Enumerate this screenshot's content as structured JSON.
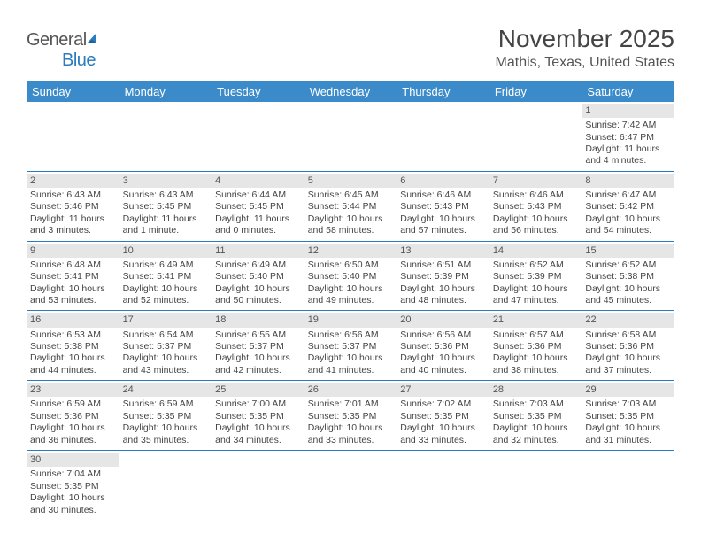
{
  "logo": {
    "general": "General",
    "blue": "Blue"
  },
  "header": {
    "month_title": "November 2025",
    "location": "Mathis, Texas, United States"
  },
  "colors": {
    "header_bg": "#3b8bca",
    "header_text": "#ffffff",
    "daynum_bg": "#e6e6e6",
    "cell_border": "#2b7bbf",
    "body_text": "#444444"
  },
  "weekdays": [
    "Sunday",
    "Monday",
    "Tuesday",
    "Wednesday",
    "Thursday",
    "Friday",
    "Saturday"
  ],
  "weeks": [
    [
      null,
      null,
      null,
      null,
      null,
      null,
      {
        "n": "1",
        "sr": "Sunrise: 7:42 AM",
        "ss": "Sunset: 6:47 PM",
        "dl1": "Daylight: 11 hours",
        "dl2": "and 4 minutes."
      }
    ],
    [
      {
        "n": "2",
        "sr": "Sunrise: 6:43 AM",
        "ss": "Sunset: 5:46 PM",
        "dl1": "Daylight: 11 hours",
        "dl2": "and 3 minutes."
      },
      {
        "n": "3",
        "sr": "Sunrise: 6:43 AM",
        "ss": "Sunset: 5:45 PM",
        "dl1": "Daylight: 11 hours",
        "dl2": "and 1 minute."
      },
      {
        "n": "4",
        "sr": "Sunrise: 6:44 AM",
        "ss": "Sunset: 5:45 PM",
        "dl1": "Daylight: 11 hours",
        "dl2": "and 0 minutes."
      },
      {
        "n": "5",
        "sr": "Sunrise: 6:45 AM",
        "ss": "Sunset: 5:44 PM",
        "dl1": "Daylight: 10 hours",
        "dl2": "and 58 minutes."
      },
      {
        "n": "6",
        "sr": "Sunrise: 6:46 AM",
        "ss": "Sunset: 5:43 PM",
        "dl1": "Daylight: 10 hours",
        "dl2": "and 57 minutes."
      },
      {
        "n": "7",
        "sr": "Sunrise: 6:46 AM",
        "ss": "Sunset: 5:43 PM",
        "dl1": "Daylight: 10 hours",
        "dl2": "and 56 minutes."
      },
      {
        "n": "8",
        "sr": "Sunrise: 6:47 AM",
        "ss": "Sunset: 5:42 PM",
        "dl1": "Daylight: 10 hours",
        "dl2": "and 54 minutes."
      }
    ],
    [
      {
        "n": "9",
        "sr": "Sunrise: 6:48 AM",
        "ss": "Sunset: 5:41 PM",
        "dl1": "Daylight: 10 hours",
        "dl2": "and 53 minutes."
      },
      {
        "n": "10",
        "sr": "Sunrise: 6:49 AM",
        "ss": "Sunset: 5:41 PM",
        "dl1": "Daylight: 10 hours",
        "dl2": "and 52 minutes."
      },
      {
        "n": "11",
        "sr": "Sunrise: 6:49 AM",
        "ss": "Sunset: 5:40 PM",
        "dl1": "Daylight: 10 hours",
        "dl2": "and 50 minutes."
      },
      {
        "n": "12",
        "sr": "Sunrise: 6:50 AM",
        "ss": "Sunset: 5:40 PM",
        "dl1": "Daylight: 10 hours",
        "dl2": "and 49 minutes."
      },
      {
        "n": "13",
        "sr": "Sunrise: 6:51 AM",
        "ss": "Sunset: 5:39 PM",
        "dl1": "Daylight: 10 hours",
        "dl2": "and 48 minutes."
      },
      {
        "n": "14",
        "sr": "Sunrise: 6:52 AM",
        "ss": "Sunset: 5:39 PM",
        "dl1": "Daylight: 10 hours",
        "dl2": "and 47 minutes."
      },
      {
        "n": "15",
        "sr": "Sunrise: 6:52 AM",
        "ss": "Sunset: 5:38 PM",
        "dl1": "Daylight: 10 hours",
        "dl2": "and 45 minutes."
      }
    ],
    [
      {
        "n": "16",
        "sr": "Sunrise: 6:53 AM",
        "ss": "Sunset: 5:38 PM",
        "dl1": "Daylight: 10 hours",
        "dl2": "and 44 minutes."
      },
      {
        "n": "17",
        "sr": "Sunrise: 6:54 AM",
        "ss": "Sunset: 5:37 PM",
        "dl1": "Daylight: 10 hours",
        "dl2": "and 43 minutes."
      },
      {
        "n": "18",
        "sr": "Sunrise: 6:55 AM",
        "ss": "Sunset: 5:37 PM",
        "dl1": "Daylight: 10 hours",
        "dl2": "and 42 minutes."
      },
      {
        "n": "19",
        "sr": "Sunrise: 6:56 AM",
        "ss": "Sunset: 5:37 PM",
        "dl1": "Daylight: 10 hours",
        "dl2": "and 41 minutes."
      },
      {
        "n": "20",
        "sr": "Sunrise: 6:56 AM",
        "ss": "Sunset: 5:36 PM",
        "dl1": "Daylight: 10 hours",
        "dl2": "and 40 minutes."
      },
      {
        "n": "21",
        "sr": "Sunrise: 6:57 AM",
        "ss": "Sunset: 5:36 PM",
        "dl1": "Daylight: 10 hours",
        "dl2": "and 38 minutes."
      },
      {
        "n": "22",
        "sr": "Sunrise: 6:58 AM",
        "ss": "Sunset: 5:36 PM",
        "dl1": "Daylight: 10 hours",
        "dl2": "and 37 minutes."
      }
    ],
    [
      {
        "n": "23",
        "sr": "Sunrise: 6:59 AM",
        "ss": "Sunset: 5:36 PM",
        "dl1": "Daylight: 10 hours",
        "dl2": "and 36 minutes."
      },
      {
        "n": "24",
        "sr": "Sunrise: 6:59 AM",
        "ss": "Sunset: 5:35 PM",
        "dl1": "Daylight: 10 hours",
        "dl2": "and 35 minutes."
      },
      {
        "n": "25",
        "sr": "Sunrise: 7:00 AM",
        "ss": "Sunset: 5:35 PM",
        "dl1": "Daylight: 10 hours",
        "dl2": "and 34 minutes."
      },
      {
        "n": "26",
        "sr": "Sunrise: 7:01 AM",
        "ss": "Sunset: 5:35 PM",
        "dl1": "Daylight: 10 hours",
        "dl2": "and 33 minutes."
      },
      {
        "n": "27",
        "sr": "Sunrise: 7:02 AM",
        "ss": "Sunset: 5:35 PM",
        "dl1": "Daylight: 10 hours",
        "dl2": "and 33 minutes."
      },
      {
        "n": "28",
        "sr": "Sunrise: 7:03 AM",
        "ss": "Sunset: 5:35 PM",
        "dl1": "Daylight: 10 hours",
        "dl2": "and 32 minutes."
      },
      {
        "n": "29",
        "sr": "Sunrise: 7:03 AM",
        "ss": "Sunset: 5:35 PM",
        "dl1": "Daylight: 10 hours",
        "dl2": "and 31 minutes."
      }
    ],
    [
      {
        "n": "30",
        "sr": "Sunrise: 7:04 AM",
        "ss": "Sunset: 5:35 PM",
        "dl1": "Daylight: 10 hours",
        "dl2": "and 30 minutes."
      },
      null,
      null,
      null,
      null,
      null,
      null
    ]
  ]
}
